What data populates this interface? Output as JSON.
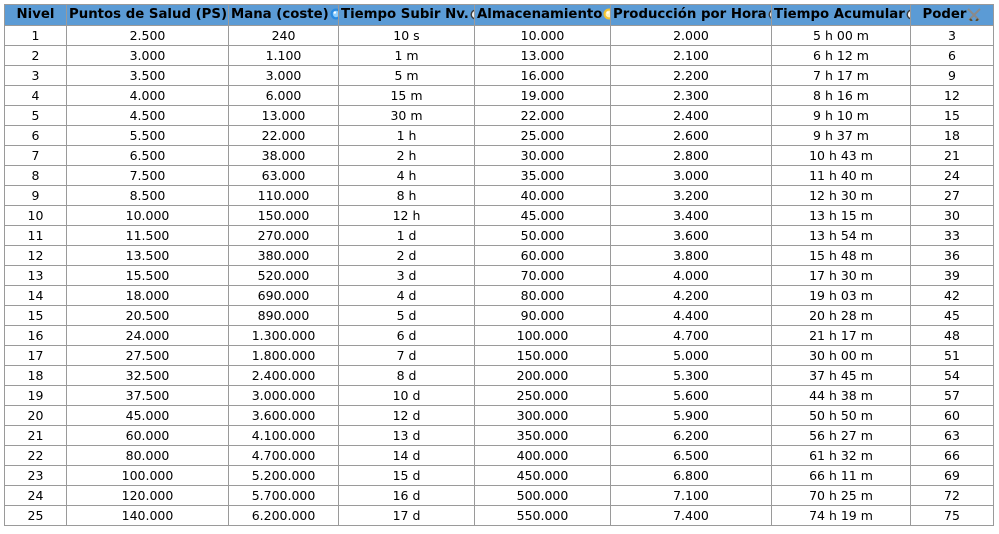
{
  "headers": {
    "nivel": "Nivel",
    "ps": "Puntos de Salud (PS)",
    "mana": "Mana (coste)",
    "tiempo": "Tiempo Subir Nv.",
    "almacen": "Almacenamiento",
    "produccion": "Producción por Hora",
    "acumular": "Tiempo Acumular",
    "poder": "Poder"
  },
  "icons": {
    "ps": "heart-icon",
    "mana": "mana-orb-icon",
    "tiempo": "clock-icon",
    "almacen": "storage-orb-icon",
    "produccion": "clock-icon",
    "acumular": "clock-icon",
    "poder": "crossed-swords-icon"
  },
  "colors": {
    "header_bg": "#5b9bd5",
    "heart": "#c0262c",
    "mana": "#2a8be0",
    "storage": "#f2c230"
  },
  "rows": [
    [
      "1",
      "2.500",
      "240",
      "10 s",
      "10.000",
      "2.000",
      "5 h 00 m",
      "3"
    ],
    [
      "2",
      "3.000",
      "1.100",
      "1 m",
      "13.000",
      "2.100",
      "6 h 12 m",
      "6"
    ],
    [
      "3",
      "3.500",
      "3.000",
      "5 m",
      "16.000",
      "2.200",
      "7 h 17 m",
      "9"
    ],
    [
      "4",
      "4.000",
      "6.000",
      "15 m",
      "19.000",
      "2.300",
      "8 h 16 m",
      "12"
    ],
    [
      "5",
      "4.500",
      "13.000",
      "30 m",
      "22.000",
      "2.400",
      "9 h 10 m",
      "15"
    ],
    [
      "6",
      "5.500",
      "22.000",
      "1 h",
      "25.000",
      "2.600",
      "9 h 37 m",
      "18"
    ],
    [
      "7",
      "6.500",
      "38.000",
      "2 h",
      "30.000",
      "2.800",
      "10 h 43 m",
      "21"
    ],
    [
      "8",
      "7.500",
      "63.000",
      "4 h",
      "35.000",
      "3.000",
      "11 h 40 m",
      "24"
    ],
    [
      "9",
      "8.500",
      "110.000",
      "8 h",
      "40.000",
      "3.200",
      "12 h 30 m",
      "27"
    ],
    [
      "10",
      "10.000",
      "150.000",
      "12 h",
      "45.000",
      "3.400",
      "13 h 15 m",
      "30"
    ],
    [
      "11",
      "11.500",
      "270.000",
      "1 d",
      "50.000",
      "3.600",
      "13 h 54 m",
      "33"
    ],
    [
      "12",
      "13.500",
      "380.000",
      "2 d",
      "60.000",
      "3.800",
      "15 h 48 m",
      "36"
    ],
    [
      "13",
      "15.500",
      "520.000",
      "3 d",
      "70.000",
      "4.000",
      "17 h 30 m",
      "39"
    ],
    [
      "14",
      "18.000",
      "690.000",
      "4 d",
      "80.000",
      "4.200",
      "19 h 03 m",
      "42"
    ],
    [
      "15",
      "20.500",
      "890.000",
      "5 d",
      "90.000",
      "4.400",
      "20 h 28 m",
      "45"
    ],
    [
      "16",
      "24.000",
      "1.300.000",
      "6 d",
      "100.000",
      "4.700",
      "21 h 17 m",
      "48"
    ],
    [
      "17",
      "27.500",
      "1.800.000",
      "7 d",
      "150.000",
      "5.000",
      "30 h 00 m",
      "51"
    ],
    [
      "18",
      "32.500",
      "2.400.000",
      "8 d",
      "200.000",
      "5.300",
      "37 h 45 m",
      "54"
    ],
    [
      "19",
      "37.500",
      "3.000.000",
      "10 d",
      "250.000",
      "5.600",
      "44 h 38 m",
      "57"
    ],
    [
      "20",
      "45.000",
      "3.600.000",
      "12 d",
      "300.000",
      "5.900",
      "50 h 50 m",
      "60"
    ],
    [
      "21",
      "60.000",
      "4.100.000",
      "13 d",
      "350.000",
      "6.200",
      "56 h 27 m",
      "63"
    ],
    [
      "22",
      "80.000",
      "4.700.000",
      "14 d",
      "400.000",
      "6.500",
      "61 h 32 m",
      "66"
    ],
    [
      "23",
      "100.000",
      "5.200.000",
      "15 d",
      "450.000",
      "6.800",
      "66 h 11 m",
      "69"
    ],
    [
      "24",
      "120.000",
      "5.700.000",
      "16 d",
      "500.000",
      "7.100",
      "70 h 25 m",
      "72"
    ],
    [
      "25",
      "140.000",
      "6.200.000",
      "17 d",
      "550.000",
      "7.400",
      "74 h 19 m",
      "75"
    ]
  ]
}
